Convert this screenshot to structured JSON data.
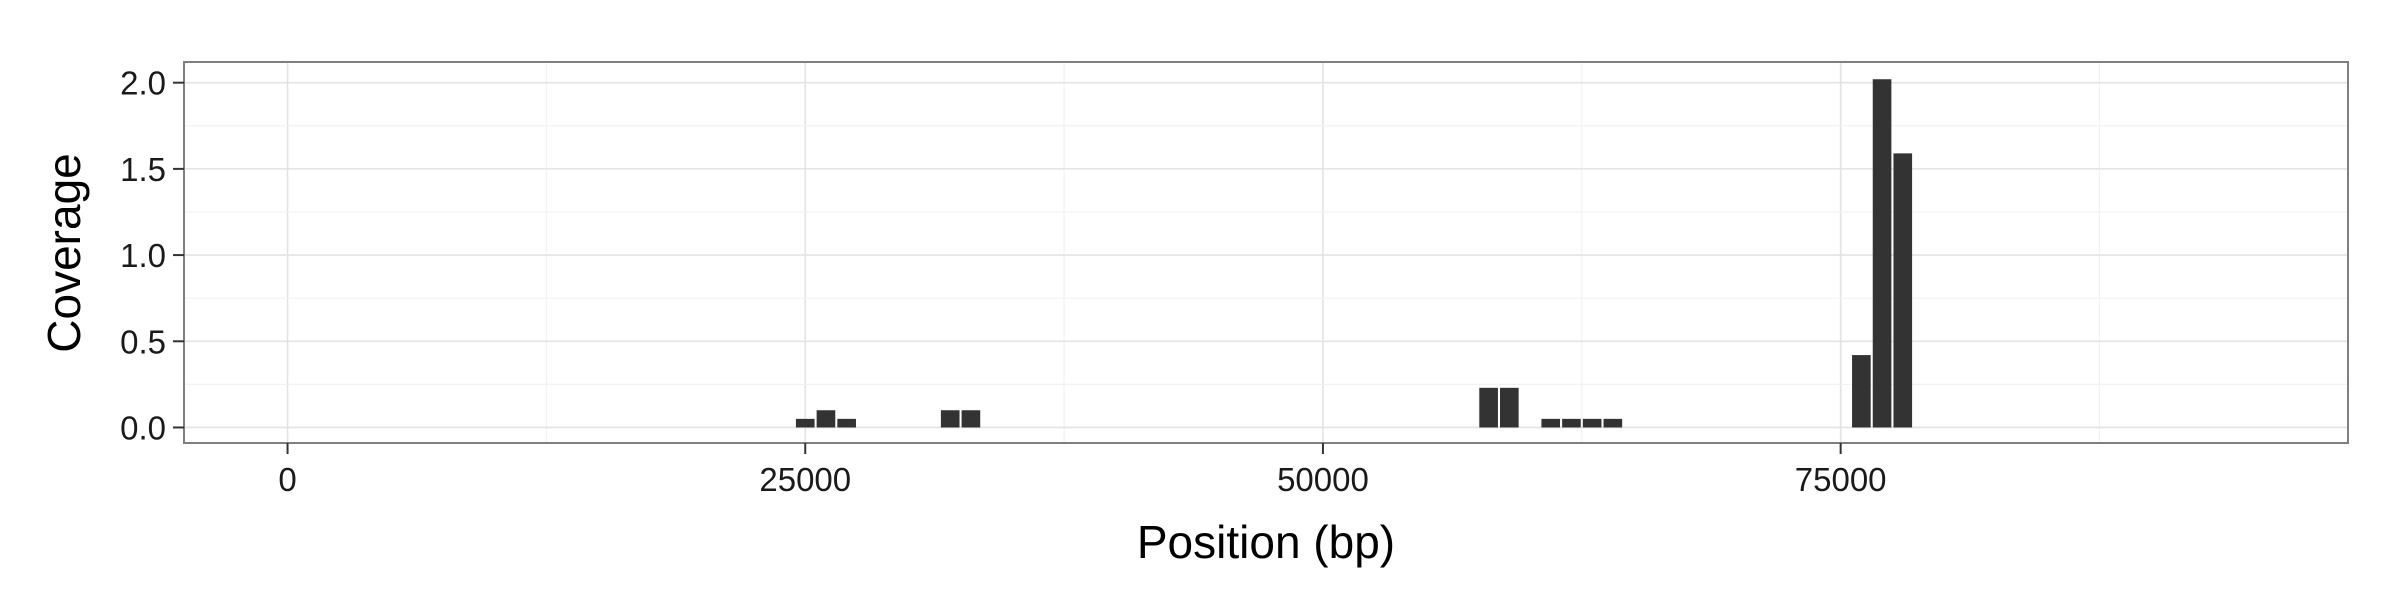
{
  "chart_data": {
    "type": "bar",
    "title": "",
    "xlabel": "Position (bp)",
    "ylabel": "Coverage",
    "xlim": [
      -5000,
      99500
    ],
    "ylim": [
      -0.09,
      2.12
    ],
    "x_ticks": [
      {
        "value": 0,
        "label": "0"
      },
      {
        "value": 25000,
        "label": "25000"
      },
      {
        "value": 50000,
        "label": "50000"
      },
      {
        "value": 75000,
        "label": "75000"
      }
    ],
    "y_ticks": [
      {
        "value": 0.0,
        "label": "0.0"
      },
      {
        "value": 0.5,
        "label": "0.5"
      },
      {
        "value": 1.0,
        "label": "1.0"
      },
      {
        "value": 1.5,
        "label": "1.5"
      },
      {
        "value": 2.0,
        "label": "2.0"
      }
    ],
    "bin_width_bp": 1000,
    "x": [
      25000,
      26000,
      27000,
      32000,
      33000,
      58000,
      59000,
      61000,
      62000,
      63000,
      64000,
      76000,
      77000,
      78000
    ],
    "values": [
      0.05,
      0.1,
      0.05,
      0.1,
      0.1,
      0.23,
      0.23,
      0.05,
      0.05,
      0.05,
      0.05,
      0.42,
      2.02,
      1.59
    ],
    "bar_color": "#333333",
    "grid": true,
    "legend": "none"
  }
}
